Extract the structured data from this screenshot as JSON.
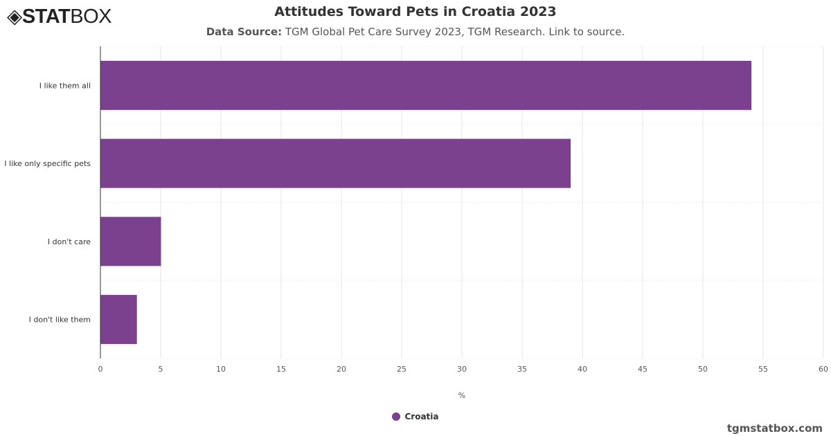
{
  "logo": {
    "bold": "STAT",
    "thin": "BOX"
  },
  "brand": "tgmstatbox.com",
  "chart_data": {
    "type": "bar",
    "orientation": "horizontal",
    "title": "Attitudes Toward Pets in Croatia 2023",
    "subtitle_label": "Data Source:",
    "subtitle_text": "TGM Global Pet Care Survey 2023, TGM Research. Link to source.",
    "categories": [
      "I like them all",
      "I like only specific pets",
      "I don't care",
      "I don't like them"
    ],
    "series": [
      {
        "name": "Croatia",
        "values": [
          54,
          39,
          5,
          3
        ],
        "color": "#7b418e"
      }
    ],
    "xlabel": "%",
    "xlim": [
      0,
      60
    ],
    "xticks": [
      0,
      5,
      10,
      15,
      20,
      25,
      30,
      35,
      40,
      45,
      50,
      55,
      60
    ],
    "grid": true,
    "legend": "bottom"
  }
}
